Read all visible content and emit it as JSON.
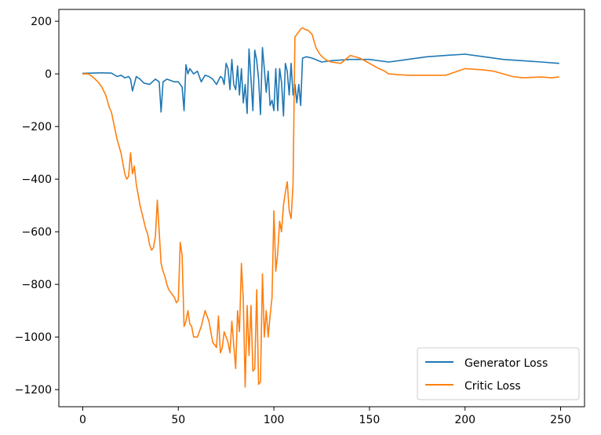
{
  "chart_data": {
    "type": "line",
    "title": "",
    "xlabel": "",
    "ylabel": "",
    "xlim": [
      -12.5,
      262.5
    ],
    "ylim": [
      -1265,
      245
    ],
    "x_ticks": [
      0,
      50,
      100,
      150,
      200,
      250
    ],
    "y_ticks": [
      200,
      0,
      -200,
      -400,
      -600,
      -800,
      -1000,
      -1200
    ],
    "x_tick_labels": [
      "0",
      "50",
      "100",
      "150",
      "200",
      "250"
    ],
    "y_tick_labels": [
      "200",
      "0",
      "−200",
      "−400",
      "−600",
      "−800",
      "−1000",
      "−1200"
    ],
    "grid": false,
    "legend_position": "lower-right",
    "series": [
      {
        "name": "Generator Loss",
        "color": "#1f77b4",
        "x": [
          0,
          5,
          10,
          15,
          18,
          20,
          22,
          24,
          25,
          26,
          28,
          30,
          32,
          35,
          38,
          40,
          41,
          42,
          44,
          46,
          48,
          50,
          52,
          53,
          54,
          55,
          56,
          58,
          60,
          62,
          64,
          66,
          68,
          70,
          72,
          73,
          74,
          75,
          76,
          77,
          78,
          79,
          80,
          81,
          82,
          83,
          84,
          85,
          86,
          87,
          88,
          89,
          90,
          91,
          92,
          93,
          94,
          95,
          96,
          97,
          98,
          99,
          100,
          101,
          102,
          103,
          104,
          105,
          106,
          107,
          108,
          109,
          110,
          111,
          112,
          113,
          114,
          115,
          117,
          120,
          125,
          130,
          140,
          150,
          160,
          170,
          180,
          190,
          200,
          210,
          220,
          230,
          240,
          249
        ],
        "values": [
          2,
          3,
          4,
          3,
          -10,
          -5,
          -15,
          -10,
          -20,
          -65,
          -10,
          -20,
          -35,
          -40,
          -20,
          -30,
          -145,
          -30,
          -20,
          -25,
          -30,
          -30,
          -50,
          -140,
          35,
          0,
          20,
          0,
          10,
          -30,
          -5,
          -10,
          -20,
          -40,
          -10,
          -15,
          -40,
          40,
          20,
          -60,
          55,
          -40,
          -60,
          30,
          -80,
          20,
          -110,
          -40,
          -150,
          95,
          -20,
          -140,
          90,
          50,
          -20,
          -155,
          100,
          20,
          -70,
          10,
          -120,
          -100,
          -140,
          20,
          -140,
          20,
          -30,
          -160,
          40,
          10,
          -80,
          40,
          -80,
          -40,
          -110,
          -40,
          -120,
          60,
          65,
          60,
          45,
          50,
          55,
          55,
          45,
          55,
          65,
          70,
          75,
          65,
          55,
          50,
          45,
          40
        ]
      },
      {
        "name": "Critic Loss",
        "color": "#ff7f0e",
        "x": [
          0,
          3,
          5,
          8,
          10,
          12,
          14,
          15,
          16,
          18,
          20,
          21,
          22,
          23,
          24,
          25,
          26,
          27,
          28,
          29,
          30,
          31,
          32,
          33,
          34,
          35,
          36,
          37,
          38,
          39,
          40,
          41,
          42,
          43,
          44,
          45,
          46,
          47,
          48,
          49,
          50,
          51,
          52,
          53,
          54,
          55,
          56,
          57,
          58,
          60,
          62,
          64,
          66,
          68,
          70,
          71,
          72,
          73,
          74,
          75,
          76,
          77,
          78,
          79,
          80,
          81,
          82,
          83,
          84,
          85,
          86,
          87,
          88,
          89,
          90,
          91,
          92,
          93,
          94,
          95,
          96,
          97,
          98,
          99,
          100,
          101,
          102,
          103,
          104,
          105,
          106,
          107,
          108,
          109,
          110,
          111,
          112,
          113,
          114,
          115,
          116,
          118,
          120,
          122,
          124,
          126,
          128,
          130,
          135,
          140,
          145,
          150,
          155,
          158,
          160,
          165,
          170,
          180,
          190,
          200,
          210,
          215,
          220,
          225,
          230,
          240,
          245,
          249
        ],
        "values": [
          0,
          0,
          -10,
          -30,
          -50,
          -80,
          -130,
          -145,
          -180,
          -250,
          -300,
          -340,
          -380,
          -400,
          -390,
          -300,
          -380,
          -350,
          -420,
          -460,
          -500,
          -530,
          -560,
          -590,
          -610,
          -650,
          -670,
          -660,
          -620,
          -480,
          -600,
          -720,
          -750,
          -770,
          -800,
          -820,
          -830,
          -840,
          -850,
          -870,
          -860,
          -640,
          -690,
          -960,
          -940,
          -900,
          -950,
          -960,
          -1000,
          -1000,
          -960,
          -900,
          -940,
          -1020,
          -1040,
          -920,
          -1060,
          -1040,
          -980,
          -1000,
          -1020,
          -1060,
          -940,
          -1030,
          -1120,
          -900,
          -980,
          -720,
          -860,
          -1190,
          -880,
          -1070,
          -880,
          -1130,
          -1120,
          -820,
          -1180,
          -1170,
          -760,
          -1000,
          -900,
          -1000,
          -920,
          -850,
          -520,
          -750,
          -680,
          -560,
          -600,
          -500,
          -450,
          -410,
          -520,
          -550,
          -420,
          140,
          150,
          160,
          170,
          175,
          170,
          165,
          150,
          100,
          75,
          60,
          50,
          45,
          40,
          70,
          60,
          40,
          20,
          10,
          0,
          -3,
          -5,
          -5,
          -5,
          20,
          15,
          10,
          0,
          -10,
          -15,
          -12,
          -15,
          -12
        ]
      }
    ]
  }
}
